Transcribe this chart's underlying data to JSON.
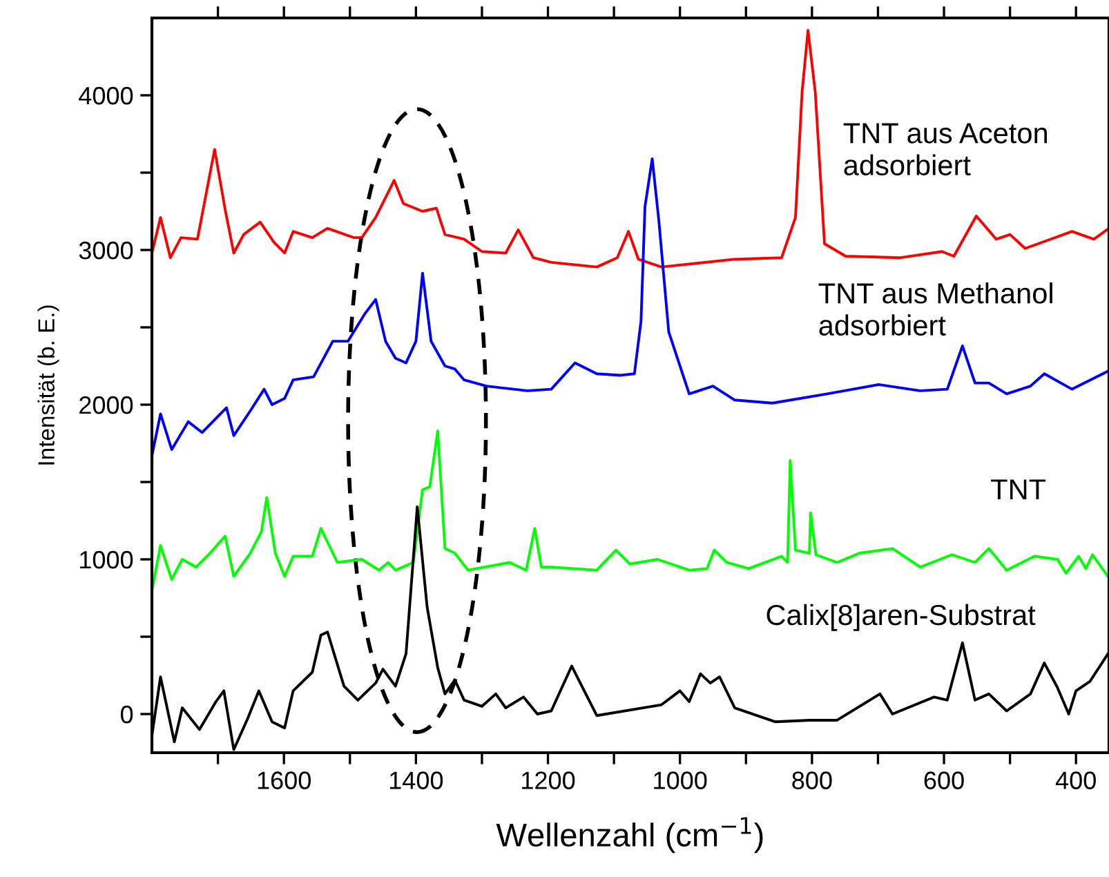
{
  "chart_data": {
    "type": "line",
    "xlabel": "Wellenzahl (cm$^{−1}$)",
    "ylabel": "Intensität (b. E.)",
    "xlim": [
      1800,
      350
    ],
    "ylim": [
      -250,
      4500
    ],
    "xticks": [
      {
        "value": 1700,
        "label": null
      },
      1600,
      {
        "value": 1500,
        "label": null
      },
      1400,
      {
        "value": 1300,
        "label": null
      },
      1200,
      {
        "value": 1100,
        "label": null
      },
      1000,
      {
        "value": 900,
        "label": null
      },
      800,
      {
        "value": 700,
        "label": null
      },
      600,
      {
        "value": 500,
        "label": null
      },
      400
    ],
    "yticks": [
      0,
      {
        "value": 500,
        "label": null
      },
      1000,
      {
        "value": 1500,
        "label": null
      },
      2000,
      {
        "value": 2500,
        "label": null
      },
      3000,
      {
        "value": 3500,
        "label": null
      },
      4000
    ],
    "grid": false,
    "legend": false,
    "marker": "none",
    "line_style": "solid",
    "series": [
      {
        "name": "TNT aus Aceton\nadsorbiert",
        "color": "#ff0000",
        "x": [
          1800,
          1787,
          1772,
          1756,
          1731,
          1705,
          1689,
          1676,
          1661,
          1636,
          1615,
          1599,
          1586,
          1557,
          1534,
          1494,
          1482,
          1461,
          1433,
          1419,
          1390,
          1369,
          1356,
          1327,
          1300,
          1264,
          1245,
          1222,
          1195,
          1126,
          1095,
          1078,
          1063,
          1028,
          917,
          846,
          825,
          815,
          806,
          795,
          781,
          749,
          666,
          603,
          585,
          551,
          521,
          500,
          477,
          406,
          373,
          350
        ],
        "values": [
          2980,
          3210,
          2950,
          3080,
          3070,
          3650,
          3260,
          2980,
          3100,
          3180,
          3050,
          2980,
          3120,
          3080,
          3140,
          3080,
          3080,
          3210,
          3450,
          3300,
          3250,
          3270,
          3100,
          3070,
          2990,
          2980,
          3130,
          2950,
          2920,
          2890,
          2950,
          3120,
          2940,
          2890,
          2940,
          2950,
          3210,
          4020,
          4420,
          4020,
          3040,
          2960,
          2950,
          2990,
          2960,
          3220,
          3070,
          3100,
          3010,
          3120,
          3070,
          3140
        ]
      },
      {
        "name": "TNT aus Methanol\nadsorbiert",
        "color": "#0000ff",
        "x": [
          1800,
          1787,
          1770,
          1745,
          1724,
          1687,
          1676,
          1651,
          1630,
          1618,
          1599,
          1586,
          1555,
          1526,
          1503,
          1477,
          1461,
          1446,
          1431,
          1415,
          1400,
          1390,
          1377,
          1356,
          1341,
          1327,
          1293,
          1231,
          1195,
          1159,
          1126,
          1090,
          1069,
          1059,
          1053,
          1042,
          1032,
          1017,
          986,
          950,
          917,
          860,
          777,
          699,
          636,
          595,
          572,
          553,
          532,
          505,
          469,
          448,
          406,
          350
        ],
        "values": [
          1670,
          1940,
          1710,
          1890,
          1820,
          1980,
          1800,
          1960,
          2100,
          2000,
          2040,
          2160,
          2180,
          2410,
          2410,
          2590,
          2680,
          2410,
          2300,
          2270,
          2410,
          2850,
          2410,
          2250,
          2230,
          2160,
          2120,
          2090,
          2100,
          2270,
          2200,
          2190,
          2200,
          2540,
          3280,
          3590,
          3190,
          2470,
          2070,
          2120,
          2030,
          2010,
          2070,
          2130,
          2090,
          2100,
          2380,
          2140,
          2140,
          2070,
          2120,
          2200,
          2100,
          2220
        ]
      },
      {
        "name": "TNT",
        "color": "#00ff00",
        "x": [
          1800,
          1787,
          1770,
          1754,
          1733,
          1712,
          1689,
          1676,
          1651,
          1634,
          1626,
          1613,
          1599,
          1586,
          1557,
          1544,
          1519,
          1482,
          1456,
          1442,
          1431,
          1404,
          1390,
          1379,
          1367,
          1356,
          1341,
          1321,
          1258,
          1233,
          1220,
          1210,
          1195,
          1126,
          1097,
          1076,
          1034,
          986,
          959,
          948,
          929,
          896,
          846,
          837,
          833,
          825,
          804,
          802,
          794,
          762,
          728,
          678,
          636,
          588,
          553,
          532,
          505,
          463,
          428,
          415,
          396,
          385,
          375,
          350
        ],
        "values": [
          800,
          1090,
          870,
          1000,
          950,
          1040,
          1150,
          890,
          1040,
          1180,
          1400,
          1040,
          890,
          1020,
          1020,
          1200,
          980,
          1000,
          930,
          980,
          930,
          980,
          1450,
          1470,
          1830,
          1070,
          1040,
          930,
          980,
          930,
          1200,
          950,
          950,
          930,
          1060,
          970,
          1000,
          930,
          940,
          1060,
          980,
          940,
          1020,
          980,
          1640,
          1060,
          1040,
          1300,
          1030,
          980,
          1040,
          1070,
          950,
          1030,
          980,
          1070,
          930,
          1020,
          1000,
          910,
          1020,
          940,
          1030,
          880
        ]
      },
      {
        "name": "Calix[8]aren-Substrat",
        "color": "#000000",
        "x": [
          1800,
          1787,
          1766,
          1754,
          1728,
          1703,
          1691,
          1676,
          1655,
          1638,
          1618,
          1599,
          1586,
          1557,
          1544,
          1534,
          1509,
          1488,
          1461,
          1450,
          1431,
          1415,
          1398,
          1383,
          1367,
          1356,
          1341,
          1327,
          1300,
          1279,
          1264,
          1237,
          1216,
          1195,
          1164,
          1126,
          1028,
          1000,
          986,
          969,
          954,
          940,
          917,
          856,
          804,
          762,
          697,
          678,
          615,
          595,
          572,
          553,
          532,
          505,
          469,
          448,
          428,
          411,
          400,
          379,
          350
        ],
        "values": [
          -140,
          240,
          -180,
          40,
          -100,
          80,
          150,
          -230,
          -30,
          150,
          -50,
          -90,
          150,
          270,
          510,
          530,
          180,
          90,
          200,
          290,
          180,
          390,
          1340,
          690,
          300,
          130,
          220,
          90,
          50,
          130,
          40,
          110,
          0,
          20,
          310,
          -10,
          60,
          150,
          80,
          260,
          200,
          240,
          40,
          -50,
          -40,
          -40,
          130,
          0,
          110,
          90,
          460,
          90,
          130,
          20,
          130,
          330,
          170,
          0,
          150,
          210,
          400
        ]
      }
    ]
  }
}
